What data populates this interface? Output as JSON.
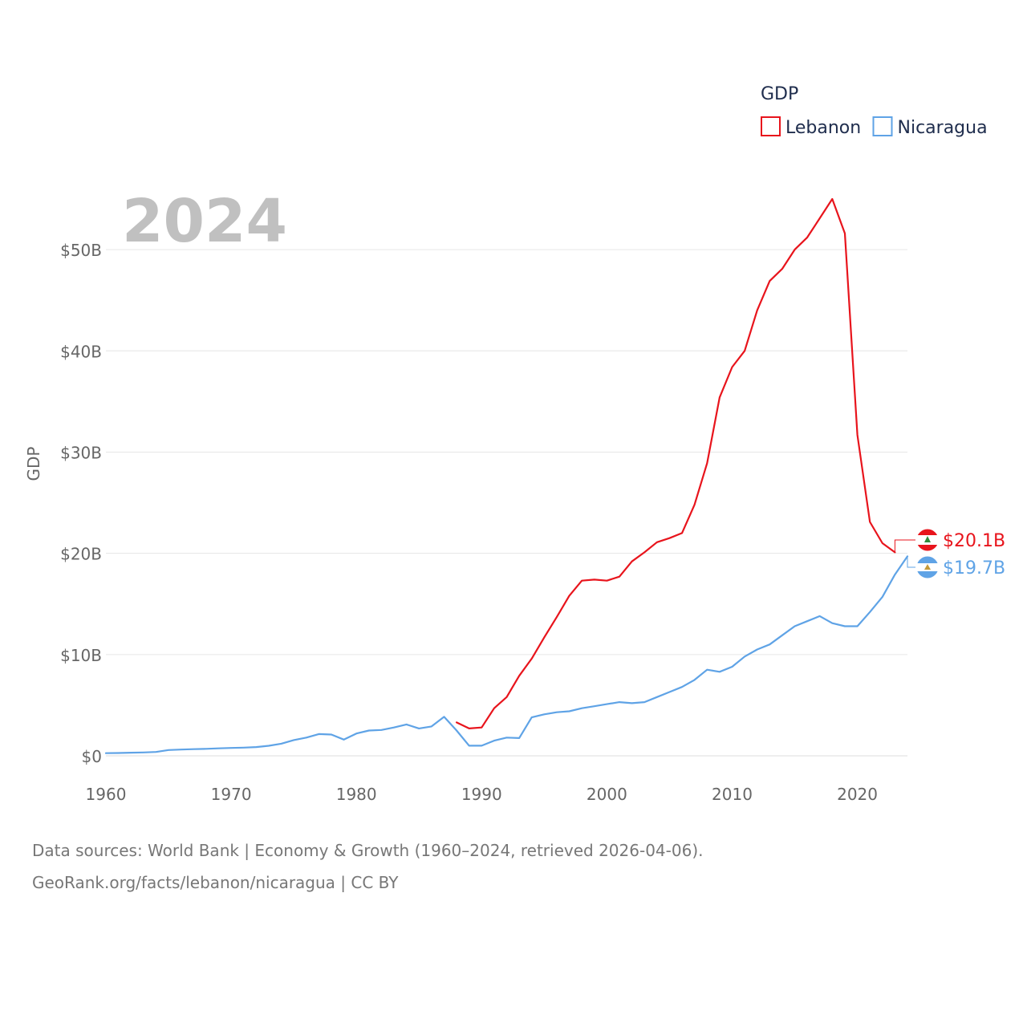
{
  "chart_data": {
    "type": "line",
    "year_label": "2024",
    "ylabel": "GDP",
    "xlabel": "",
    "xlim": [
      1960,
      2024
    ],
    "ylim": [
      0,
      55
    ],
    "x_ticks": [
      1960,
      1970,
      1980,
      1990,
      2000,
      2010,
      2020
    ],
    "y_ticks": [
      {
        "value": 0,
        "label": "$0"
      },
      {
        "value": 10,
        "label": "$10B"
      },
      {
        "value": 20,
        "label": "$20B"
      },
      {
        "value": 30,
        "label": "$30B"
      },
      {
        "value": 40,
        "label": "$40B"
      },
      {
        "value": 50,
        "label": "$50B"
      }
    ],
    "grid": true,
    "legend": {
      "title": "GDP",
      "position": "top-right",
      "entries": [
        {
          "name": "Lebanon",
          "color": "#e8141c"
        },
        {
          "name": "Nicaragua",
          "color": "#5fa3e6"
        }
      ]
    },
    "series": [
      {
        "name": "Lebanon",
        "color": "#e8141c",
        "end_label": "$20.1B",
        "x": [
          1988,
          1989,
          1990,
          1991,
          1992,
          1993,
          1994,
          1995,
          1996,
          1997,
          1998,
          1999,
          2000,
          2001,
          2002,
          2003,
          2004,
          2005,
          2006,
          2007,
          2008,
          2009,
          2010,
          2011,
          2012,
          2013,
          2014,
          2015,
          2016,
          2017,
          2018,
          2019,
          2020,
          2021,
          2022,
          2023
        ],
        "values": [
          3.3,
          2.7,
          2.8,
          4.7,
          5.8,
          7.9,
          9.6,
          11.7,
          13.7,
          15.8,
          17.3,
          17.4,
          17.3,
          17.7,
          19.2,
          20.1,
          21.1,
          21.5,
          22.0,
          24.8,
          28.9,
          35.4,
          38.4,
          40.0,
          44.0,
          46.9,
          48.1,
          50.0,
          51.2,
          53.1,
          55.0,
          51.6,
          31.7,
          23.1,
          21.0,
          20.1
        ]
      },
      {
        "name": "Nicaragua",
        "color": "#5fa3e6",
        "end_label": "$19.7B",
        "x": [
          1960,
          1961,
          1962,
          1963,
          1964,
          1965,
          1966,
          1967,
          1968,
          1969,
          1970,
          1971,
          1972,
          1973,
          1974,
          1975,
          1976,
          1977,
          1978,
          1979,
          1980,
          1981,
          1982,
          1983,
          1984,
          1985,
          1986,
          1987,
          1988,
          1989,
          1990,
          1991,
          1992,
          1993,
          1994,
          1995,
          1996,
          1997,
          1998,
          1999,
          2000,
          2001,
          2002,
          2003,
          2004,
          2005,
          2006,
          2007,
          2008,
          2009,
          2010,
          2011,
          2012,
          2013,
          2014,
          2015,
          2016,
          2017,
          2018,
          2019,
          2020,
          2021,
          2022,
          2023,
          2024
        ],
        "values": [
          0.26,
          0.28,
          0.31,
          0.33,
          0.38,
          0.57,
          0.62,
          0.66,
          0.69,
          0.74,
          0.78,
          0.81,
          0.86,
          0.99,
          1.2,
          1.55,
          1.8,
          2.15,
          2.1,
          1.6,
          2.2,
          2.5,
          2.55,
          2.8,
          3.1,
          2.7,
          2.9,
          3.85,
          2.5,
          1.0,
          1.0,
          1.5,
          1.8,
          1.75,
          3.8,
          4.1,
          4.3,
          4.4,
          4.7,
          4.9,
          5.1,
          5.3,
          5.2,
          5.3,
          5.8,
          6.3,
          6.8,
          7.5,
          8.5,
          8.3,
          8.8,
          9.8,
          10.5,
          11.0,
          11.9,
          12.8,
          13.3,
          13.8,
          13.1,
          12.8,
          12.8,
          14.2,
          15.7,
          17.9,
          19.7
        ]
      }
    ]
  },
  "source": {
    "line1": "Data sources: World Bank | Economy & Growth (1960–2024, retrieved 2026-04-06).",
    "line2": "GeoRank.org/facts/lebanon/nicaragua | CC BY"
  }
}
